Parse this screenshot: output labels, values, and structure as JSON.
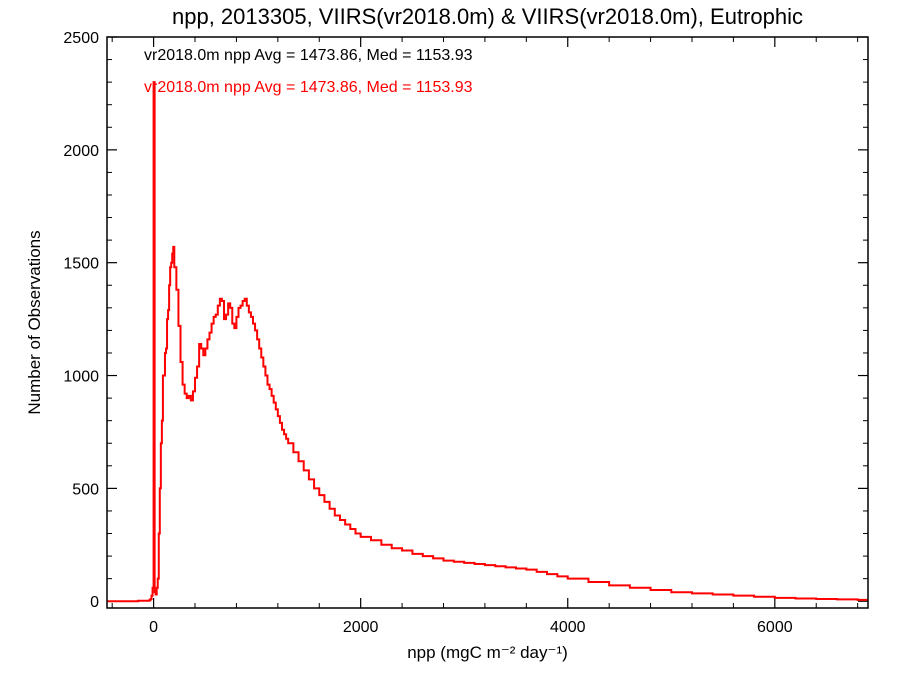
{
  "chart_data": {
    "type": "line",
    "title": "npp, 2013305, VIIRS(vr2018.0m) & VIIRS(vr2018.0m), Eutrophic",
    "xlabel": "npp (mgC m⁻² day⁻¹)",
    "ylabel": "Number of Observations",
    "xlim": [
      -450,
      6900
    ],
    "ylim": [
      -30,
      2500
    ],
    "x_ticks": [
      0,
      2000,
      4000,
      6000
    ],
    "y_ticks": [
      0,
      500,
      1000,
      1500,
      2000,
      2500
    ],
    "grid": false,
    "annotations": [
      {
        "text": "vr2018.0m npp Avg = 1473.86, Med = 1153.93",
        "color": "#000000"
      },
      {
        "text": "vr2018.0m npp Avg = 1473.86, Med = 1153.93",
        "color": "#ff0000"
      }
    ],
    "series": [
      {
        "color": "#ff0000",
        "step": "histogram",
        "x": [
          -450,
          -150,
          -40,
          -30,
          -20,
          -10,
          0,
          10,
          20,
          30,
          40,
          50,
          60,
          70,
          80,
          90,
          100,
          110,
          120,
          130,
          140,
          150,
          160,
          170,
          180,
          190,
          200,
          220,
          240,
          260,
          280,
          300,
          320,
          340,
          360,
          380,
          400,
          420,
          440,
          460,
          480,
          500,
          520,
          540,
          560,
          580,
          600,
          620,
          640,
          660,
          680,
          700,
          720,
          740,
          760,
          780,
          800,
          820,
          840,
          860,
          880,
          900,
          920,
          940,
          960,
          980,
          1000,
          1020,
          1040,
          1060,
          1080,
          1100,
          1120,
          1140,
          1160,
          1180,
          1200,
          1220,
          1240,
          1260,
          1280,
          1300,
          1350,
          1400,
          1450,
          1500,
          1550,
          1600,
          1650,
          1700,
          1750,
          1800,
          1850,
          1900,
          1950,
          2000,
          2100,
          2200,
          2300,
          2400,
          2500,
          2600,
          2700,
          2800,
          2900,
          3000,
          3100,
          3200,
          3300,
          3400,
          3500,
          3600,
          3700,
          3800,
          3900,
          4000,
          4200,
          4400,
          4600,
          4800,
          5000,
          5200,
          5400,
          5600,
          5800,
          6000,
          6200,
          6400,
          6600,
          6800
        ],
        "values": [
          0,
          2,
          5,
          10,
          25,
          60,
          2300,
          40,
          30,
          60,
          100,
          300,
          500,
          700,
          800,
          1000,
          1000,
          1100,
          1120,
          1250,
          1290,
          1400,
          1480,
          1500,
          1540,
          1570,
          1480,
          1380,
          1220,
          1060,
          960,
          920,
          900,
          910,
          890,
          930,
          990,
          1040,
          1140,
          1120,
          1090,
          1120,
          1160,
          1190,
          1230,
          1260,
          1270,
          1310,
          1340,
          1330,
          1250,
          1270,
          1320,
          1300,
          1230,
          1210,
          1260,
          1300,
          1310,
          1330,
          1340,
          1310,
          1280,
          1260,
          1230,
          1200,
          1160,
          1120,
          1080,
          1040,
          1000,
          960,
          940,
          910,
          880,
          850,
          820,
          790,
          760,
          740,
          720,
          700,
          660,
          620,
          580,
          540,
          500,
          470,
          440,
          410,
          380,
          360,
          340,
          320,
          300,
          285,
          270,
          250,
          235,
          225,
          210,
          200,
          190,
          180,
          175,
          170,
          165,
          160,
          155,
          150,
          145,
          140,
          130,
          120,
          110,
          100,
          85,
          70,
          60,
          50,
          40,
          35,
          30,
          25,
          20,
          15,
          12,
          10,
          8,
          6
        ]
      }
    ]
  }
}
